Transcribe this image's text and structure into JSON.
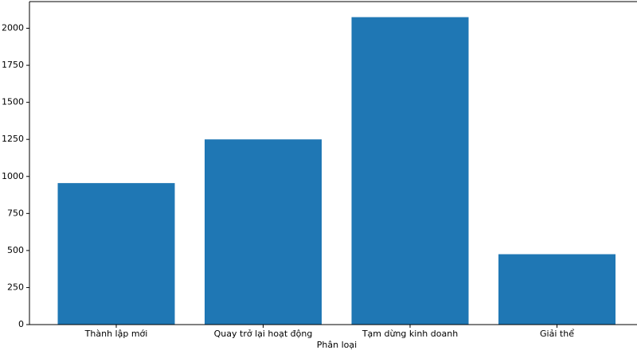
{
  "chart_data": {
    "type": "bar",
    "x_label": "Phân loại",
    "categories": [
      "Thành lập mới",
      "Quay trở lại hoạt động",
      "Tạm dừng kinh doanh",
      "Giải thể"
    ],
    "values": [
      955,
      1250,
      2075,
      475
    ],
    "color": "#1f77b4",
    "ylim": [
      0,
      2180
    ],
    "yticks": [
      0,
      250,
      500,
      750,
      1000,
      1250,
      1500,
      1750,
      2000
    ]
  }
}
